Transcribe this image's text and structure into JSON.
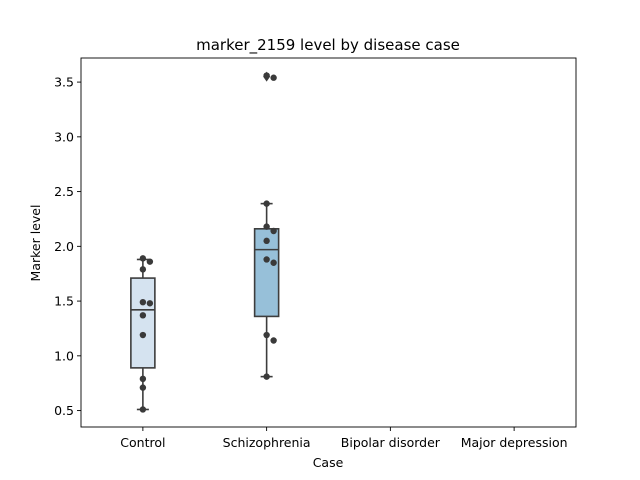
{
  "chart_data": {
    "type": "box",
    "title": "marker_2159 level by disease case",
    "xlabel": "Case",
    "ylabel": "Marker level",
    "categories": [
      "Control",
      "Schizophrenia",
      "Bipolar disorder",
      "Major depression"
    ],
    "ylim": [
      0.35,
      3.72
    ],
    "yticks": [
      0.5,
      1.0,
      1.5,
      2.0,
      2.5,
      3.0,
      3.5
    ],
    "ytick_labels": [
      "0.5",
      "1.0",
      "1.5",
      "2.0",
      "2.5",
      "3.0",
      "3.5"
    ],
    "grid": false,
    "boxes": [
      {
        "category": "Control",
        "color": "#d5e3f0",
        "whisker_low": 0.51,
        "q1": 0.89,
        "median": 1.42,
        "q3": 1.71,
        "whisker_high": 1.88,
        "outliers": [],
        "points": [
          1.89,
          1.86,
          1.79,
          1.49,
          1.48,
          1.37,
          1.19,
          0.79,
          0.71,
          0.51
        ]
      },
      {
        "category": "Schizophrenia",
        "color": "#97c0d9",
        "whisker_low": 0.81,
        "q1": 1.36,
        "median": 1.97,
        "q3": 2.16,
        "whisker_high": 2.39,
        "outliers": [
          3.55
        ],
        "points": [
          3.56,
          3.54,
          2.39,
          2.18,
          2.14,
          2.05,
          1.88,
          1.85,
          1.19,
          1.14,
          0.81
        ]
      },
      {
        "category": "Bipolar disorder",
        "color": "#6baed6",
        "points": []
      },
      {
        "category": "Major depression",
        "color": "#2171b5",
        "points": []
      }
    ],
    "point_color": "#3a3a3a",
    "line_color": "#3d3d3d"
  }
}
